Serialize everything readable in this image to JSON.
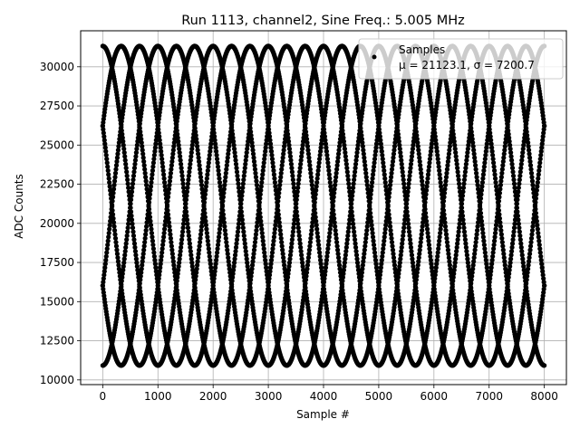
{
  "chart_data": {
    "type": "scatter",
    "title": "Run 1113, channel2, Sine Freq.: 5.005 MHz",
    "xlabel": "Sample #",
    "ylabel": "ADC Counts",
    "xlim": [
      -400,
      8400
    ],
    "ylim": [
      9700,
      32300
    ],
    "x_ticks": [
      0,
      1000,
      2000,
      3000,
      4000,
      5000,
      6000,
      7000,
      8000
    ],
    "y_ticks": [
      10000,
      12500,
      15000,
      17500,
      20000,
      22500,
      25000,
      27500,
      30000
    ],
    "grid": true,
    "legend": {
      "placement": "top-right",
      "entries": [
        {
          "label": "Samples",
          "sublabel": "μ = 21123.1, σ = 7200.7",
          "color": "#000000",
          "marker": "dot"
        }
      ]
    },
    "series": [
      {
        "name": "Samples",
        "color": "#000000",
        "model": "sine",
        "mean": 21123.1,
        "amplitude": 10200,
        "period_samples": 2000,
        "phases_deg": [
          0,
          60,
          120,
          180,
          240,
          300
        ],
        "x_range": [
          0,
          8000
        ]
      }
    ]
  }
}
